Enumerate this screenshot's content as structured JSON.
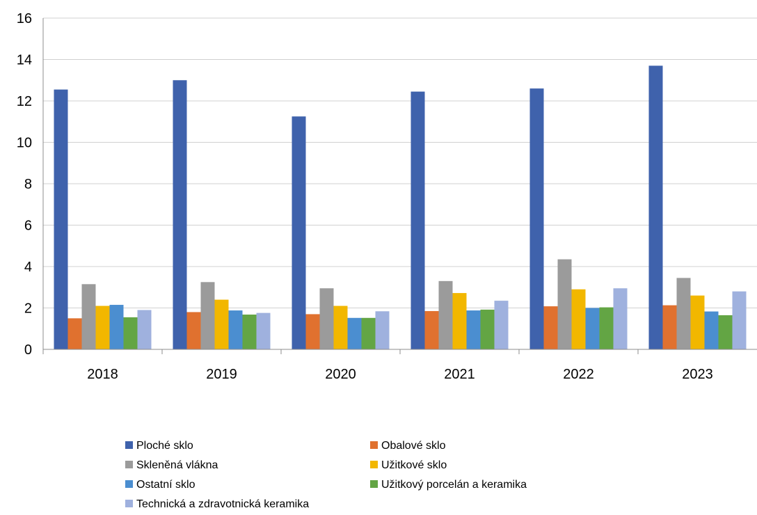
{
  "chart_data": {
    "type": "bar",
    "categories": [
      "2018",
      "2019",
      "2020",
      "2021",
      "2022",
      "2023"
    ],
    "series": [
      {
        "name": "Ploché sklo",
        "color": "#3F62AC",
        "values": [
          12.55,
          13.0,
          11.25,
          12.45,
          12.6,
          13.7
        ]
      },
      {
        "name": "Obalové sklo",
        "color": "#E0712F",
        "values": [
          1.5,
          1.8,
          1.7,
          1.85,
          2.08,
          2.13
        ]
      },
      {
        "name": "Skleněná vlákna",
        "color": "#9B9B9B",
        "values": [
          3.15,
          3.25,
          2.95,
          3.3,
          4.35,
          3.45
        ]
      },
      {
        "name": "Užitkové sklo",
        "color": "#F2B700",
        "values": [
          2.1,
          2.4,
          2.1,
          2.72,
          2.9,
          2.6
        ]
      },
      {
        "name": "Ostatní sklo",
        "color": "#4B8ED0",
        "values": [
          2.15,
          1.88,
          1.52,
          1.88,
          2.0,
          1.83
        ]
      },
      {
        "name": "Užitkový porcelán a keramika",
        "color": "#63A544",
        "values": [
          1.55,
          1.68,
          1.52,
          1.92,
          2.03,
          1.65
        ]
      },
      {
        "name": "Technická a zdravotnická keramika",
        "color": "#9FB1DE",
        "values": [
          1.9,
          1.76,
          1.84,
          2.35,
          2.95,
          2.8
        ]
      }
    ],
    "title": "",
    "xlabel": "",
    "ylabel": "",
    "ylim": [
      0,
      16
    ],
    "yticks": [
      "0",
      "2",
      "4",
      "6",
      "8",
      "10",
      "12",
      "14",
      "16"
    ],
    "grid": true,
    "legend_position": "bottom"
  }
}
